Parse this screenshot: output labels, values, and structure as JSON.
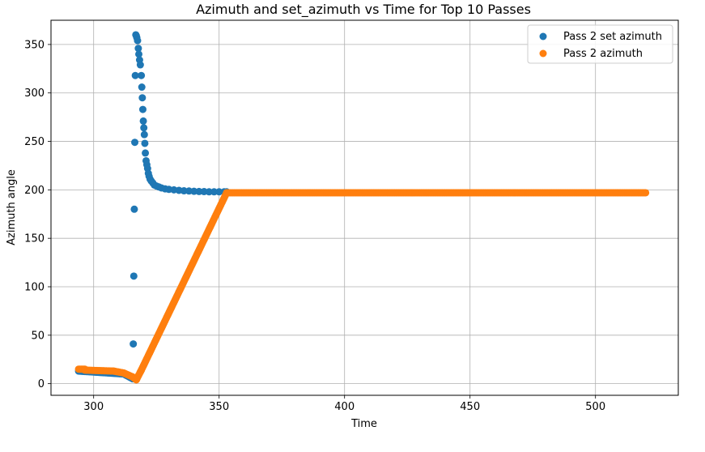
{
  "chart_data": {
    "type": "scatter",
    "title": "Azimuth and set_azimuth vs Time for Top 10 Passes",
    "xlabel": "Time",
    "ylabel": "Azimuth angle",
    "xlim": [
      283,
      533
    ],
    "ylim": [
      -12,
      375
    ],
    "xticks": [
      300,
      350,
      400,
      450,
      500
    ],
    "yticks": [
      0,
      50,
      100,
      150,
      200,
      250,
      300,
      350
    ],
    "grid": true,
    "legend_position": "top-right",
    "series": [
      {
        "name": "Pass 2 set azimuth",
        "color": "#1f77b4",
        "segments": [
          {
            "x0": 294,
            "y0": 13,
            "x1": 312,
            "y1": 10,
            "step": 0.6
          },
          {
            "x0": 312,
            "y0": 10,
            "x1": 315.6,
            "y1": 5,
            "step": 0.4
          }
        ],
        "points": [
          [
            315.8,
            41
          ],
          [
            316.0,
            111
          ],
          [
            316.2,
            180
          ],
          [
            316.4,
            249
          ],
          [
            316.6,
            318
          ],
          [
            316.8,
            360
          ],
          [
            317.0,
            359
          ],
          [
            317.2,
            357
          ],
          [
            317.5,
            354
          ],
          [
            317.8,
            346
          ],
          [
            318.0,
            340
          ],
          [
            318.3,
            334
          ],
          [
            318.6,
            329
          ],
          [
            319.0,
            318
          ],
          [
            319.2,
            306
          ],
          [
            319.4,
            295
          ],
          [
            319.6,
            283
          ],
          [
            319.8,
            271
          ],
          [
            320.0,
            264
          ],
          [
            320.2,
            257
          ],
          [
            320.4,
            248
          ],
          [
            320.6,
            238
          ],
          [
            320.9,
            230
          ],
          [
            321.2,
            226
          ],
          [
            321.5,
            222
          ],
          [
            321.8,
            217
          ],
          [
            322.1,
            214
          ],
          [
            322.5,
            211
          ],
          [
            323.0,
            209
          ],
          [
            323.6,
            207
          ],
          [
            324.2,
            205
          ],
          [
            325.0,
            204
          ],
          [
            326.0,
            203
          ],
          [
            327.0,
            202
          ],
          [
            328.5,
            201
          ],
          [
            330.0,
            200.5
          ],
          [
            332.0,
            200
          ],
          [
            334.0,
            199.5
          ],
          [
            336.0,
            199
          ],
          [
            338.0,
            198.8
          ],
          [
            340.0,
            198.5
          ],
          [
            342.0,
            198.3
          ],
          [
            344.0,
            198.2
          ],
          [
            346.0,
            198
          ],
          [
            348.0,
            198
          ],
          [
            350.0,
            198
          ],
          [
            352.0,
            198
          ],
          [
            353.0,
            198
          ]
        ]
      },
      {
        "name": "Pass 2 azimuth",
        "color": "#ff7f0e",
        "segments": [
          {
            "x0": 294,
            "y0": 15,
            "x1": 296.5,
            "y1": 15,
            "step": 0.5
          },
          {
            "x0": 296.5,
            "y0": 14,
            "x1": 308,
            "y1": 13,
            "step": 0.6
          },
          {
            "x0": 308,
            "y0": 13,
            "x1": 312,
            "y1": 11,
            "step": 0.5
          },
          {
            "x0": 312,
            "y0": 11,
            "x1": 315.5,
            "y1": 7,
            "step": 0.4
          },
          {
            "x0": 315.5,
            "y0": 7,
            "x1": 317,
            "y1": 4,
            "step": 0.3
          },
          {
            "x0": 317,
            "y0": 4,
            "x1": 319,
            "y1": 14,
            "step": 0.3
          },
          {
            "x0": 319,
            "y0": 14,
            "x1": 353,
            "y1": 197,
            "step": 0.3
          },
          {
            "x0": 353,
            "y0": 197,
            "x1": 520,
            "y1": 197,
            "step": 0.5
          }
        ],
        "points": []
      }
    ]
  }
}
